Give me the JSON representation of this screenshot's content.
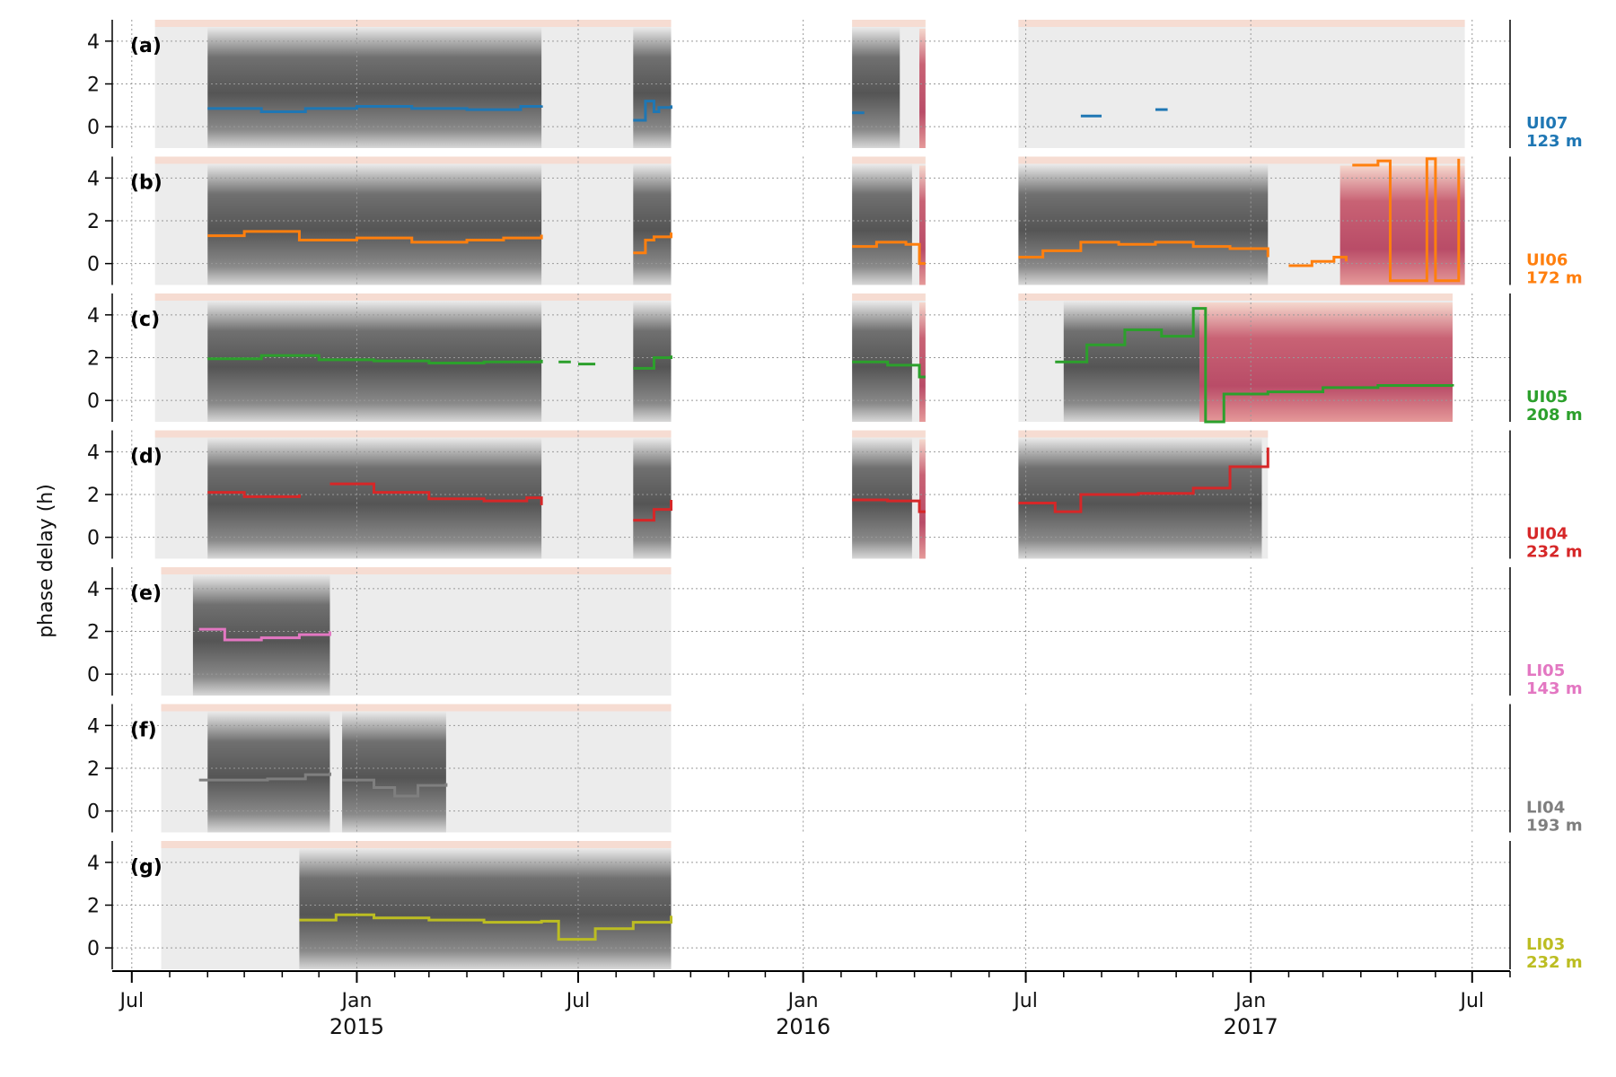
{
  "chart_data": {
    "type": "heatmap",
    "ylabel": "phase delay (h)",
    "y_ticks": [
      4,
      2,
      0
    ],
    "ylim": [
      -1,
      5
    ],
    "x_tick_labels": [
      {
        "date": "2014-07-01",
        "label": "Jul",
        "year": ""
      },
      {
        "date": "2015-01-01",
        "label": "Jan",
        "year": "2015"
      },
      {
        "date": "2015-07-01",
        "label": "Jul",
        "year": ""
      },
      {
        "date": "2016-01-01",
        "label": "Jan",
        "year": "2016"
      },
      {
        "date": "2016-07-01",
        "label": "Jul",
        "year": ""
      },
      {
        "date": "2017-01-01",
        "label": "Jan",
        "year": "2017"
      },
      {
        "date": "2017-07-01",
        "label": "Jul",
        "year": ""
      }
    ],
    "xlim": [
      "2014-06-15",
      "2017-08-01"
    ],
    "grid": true,
    "panels": [
      {
        "letter": "(a)",
        "station": "UI07",
        "depth": "123 m",
        "color": "#1f77b4",
        "heat_segments": [
          [
            "2014-07-20",
            "2015-09-15"
          ],
          [
            "2016-02-10",
            "2016-04-10"
          ],
          [
            "2016-06-25",
            "2017-06-25"
          ]
        ],
        "dark_segments": [
          [
            "2014-09-01",
            "2015-06-01"
          ],
          [
            "2015-08-15",
            "2015-09-15"
          ],
          [
            "2016-02-10",
            "2016-03-20"
          ]
        ],
        "red_segments": [
          [
            "2016-04-05",
            "2016-04-10"
          ]
        ],
        "series": [
          {
            "x": [
              "2014-09-01",
              "2014-10-15",
              "2014-11-20",
              "2015-01-01",
              "2015-02-15",
              "2015-04-01",
              "2015-05-15",
              "2015-06-01"
            ],
            "y": [
              0.85,
              0.7,
              0.85,
              0.95,
              0.85,
              0.8,
              0.95,
              1.0
            ]
          },
          {
            "x": [
              "2015-08-15",
              "2015-08-25",
              "2015-09-01",
              "2015-09-05",
              "2015-09-15"
            ],
            "y": [
              0.3,
              1.2,
              0.7,
              0.9,
              1.0
            ]
          },
          {
            "x": [
              "2016-02-10",
              "2016-02-20"
            ],
            "y": [
              0.65,
              0.65
            ]
          },
          {
            "x": [
              "2016-08-15",
              "2016-09-01"
            ],
            "y": [
              0.5,
              0.5
            ]
          },
          {
            "x": [
              "2016-10-15",
              "2016-10-25"
            ],
            "y": [
              0.8,
              0.8
            ]
          }
        ]
      },
      {
        "letter": "(b)",
        "station": "UI06",
        "depth": "172 m",
        "color": "#ff7f0e",
        "heat_segments": [
          [
            "2014-07-20",
            "2015-09-15"
          ],
          [
            "2016-02-10",
            "2016-04-10"
          ],
          [
            "2016-06-25",
            "2017-06-25"
          ]
        ],
        "dark_segments": [
          [
            "2014-09-01",
            "2015-06-01"
          ],
          [
            "2015-08-15",
            "2015-09-15"
          ],
          [
            "2016-02-10",
            "2016-03-30"
          ],
          [
            "2016-06-25",
            "2017-01-15"
          ]
        ],
        "red_segments": [
          [
            "2016-04-05",
            "2016-04-10"
          ],
          [
            "2017-03-15",
            "2017-06-25"
          ]
        ],
        "series": [
          {
            "x": [
              "2014-09-01",
              "2014-10-01",
              "2014-11-15",
              "2015-01-01",
              "2015-02-15",
              "2015-04-01",
              "2015-05-01",
              "2015-06-01"
            ],
            "y": [
              1.3,
              1.5,
              1.1,
              1.2,
              1.0,
              1.1,
              1.2,
              1.35
            ]
          },
          {
            "x": [
              "2015-08-15",
              "2015-08-25",
              "2015-09-01",
              "2015-09-15"
            ],
            "y": [
              0.5,
              1.1,
              1.25,
              1.45
            ]
          },
          {
            "x": [
              "2016-02-10",
              "2016-03-01",
              "2016-03-25",
              "2016-04-05",
              "2016-04-10"
            ],
            "y": [
              0.8,
              1.0,
              0.9,
              0.0,
              0.0
            ]
          },
          {
            "x": [
              "2016-06-25",
              "2016-07-15",
              "2016-08-15",
              "2016-09-15",
              "2016-10-15",
              "2016-11-15",
              "2016-12-15",
              "2017-01-15"
            ],
            "y": [
              0.3,
              0.6,
              1.0,
              0.9,
              1.0,
              0.8,
              0.7,
              0.3
            ]
          },
          {
            "x": [
              "2017-02-01",
              "2017-02-20",
              "2017-03-10",
              "2017-03-20"
            ],
            "y": [
              -0.1,
              0.1,
              0.3,
              0.1
            ]
          },
          {
            "x": [
              "2017-03-25",
              "2017-04-15",
              "2017-04-25",
              "2017-05-25",
              "2017-06-01",
              "2017-06-20"
            ],
            "y": [
              4.6,
              4.8,
              -0.8,
              4.9,
              -0.8,
              4.9
            ]
          }
        ]
      },
      {
        "letter": "(c)",
        "station": "UI05",
        "depth": "208 m",
        "color": "#2ca02c",
        "heat_segments": [
          [
            "2014-07-20",
            "2015-09-15"
          ],
          [
            "2016-02-10",
            "2016-04-10"
          ],
          [
            "2016-06-25",
            "2017-06-15"
          ]
        ],
        "dark_segments": [
          [
            "2014-09-01",
            "2015-06-01"
          ],
          [
            "2015-08-15",
            "2015-09-15"
          ],
          [
            "2016-02-10",
            "2016-03-30"
          ],
          [
            "2016-08-01",
            "2016-11-20"
          ]
        ],
        "red_segments": [
          [
            "2016-04-05",
            "2016-04-10"
          ],
          [
            "2016-11-20",
            "2017-06-15"
          ]
        ],
        "series": [
          {
            "x": [
              "2014-09-01",
              "2014-10-15",
              "2014-12-01",
              "2015-01-15",
              "2015-03-01",
              "2015-04-15",
              "2015-06-01"
            ],
            "y": [
              1.95,
              2.1,
              1.9,
              1.85,
              1.75,
              1.8,
              1.9
            ]
          },
          {
            "x": [
              "2015-06-15",
              "2015-06-25"
            ],
            "y": [
              1.8,
              1.8
            ]
          },
          {
            "x": [
              "2015-07-01",
              "2015-07-15"
            ],
            "y": [
              1.7,
              1.7
            ]
          },
          {
            "x": [
              "2015-08-15",
              "2015-09-01",
              "2015-09-15"
            ],
            "y": [
              1.5,
              2.0,
              2.1
            ]
          },
          {
            "x": [
              "2016-02-10",
              "2016-03-10",
              "2016-04-05",
              "2016-04-10"
            ],
            "y": [
              1.8,
              1.65,
              1.1,
              1.1
            ]
          },
          {
            "x": [
              "2016-07-25",
              "2016-08-20",
              "2016-09-20",
              "2016-10-20",
              "2016-11-15",
              "2016-11-25",
              "2016-12-10",
              "2017-01-15",
              "2017-03-01",
              "2017-04-15",
              "2017-06-15"
            ],
            "y": [
              1.8,
              2.6,
              3.3,
              3.0,
              4.3,
              -1.0,
              0.3,
              0.4,
              0.6,
              0.7,
              0.65
            ]
          }
        ]
      },
      {
        "letter": "(d)",
        "station": "UI04",
        "depth": "232 m",
        "color": "#d62728",
        "heat_segments": [
          [
            "2014-07-20",
            "2015-09-15"
          ],
          [
            "2016-02-10",
            "2016-04-10"
          ],
          [
            "2016-06-25",
            "2017-01-15"
          ]
        ],
        "dark_segments": [
          [
            "2014-09-01",
            "2015-06-01"
          ],
          [
            "2015-08-15",
            "2015-09-15"
          ],
          [
            "2016-02-10",
            "2016-03-30"
          ],
          [
            "2016-06-25",
            "2017-01-10"
          ]
        ],
        "red_segments": [
          [
            "2016-04-05",
            "2016-04-10"
          ]
        ],
        "series": [
          {
            "x": [
              "2014-09-01",
              "2014-10-01",
              "2014-11-15"
            ],
            "y": [
              2.1,
              1.9,
              2.0
            ]
          },
          {
            "x": [
              "2014-12-10",
              "2015-01-15",
              "2015-03-01",
              "2015-04-15",
              "2015-05-20",
              "2015-06-01"
            ],
            "y": [
              2.5,
              2.1,
              1.8,
              1.7,
              1.85,
              1.5
            ]
          },
          {
            "x": [
              "2015-08-15",
              "2015-09-01",
              "2015-09-15"
            ],
            "y": [
              0.8,
              1.3,
              1.75
            ]
          },
          {
            "x": [
              "2016-02-10",
              "2016-03-10",
              "2016-04-05",
              "2016-04-10"
            ],
            "y": [
              1.75,
              1.7,
              1.2,
              1.2
            ]
          },
          {
            "x": [
              "2016-06-25",
              "2016-07-25",
              "2016-08-15",
              "2016-10-01",
              "2016-11-15",
              "2016-12-15",
              "2017-01-15"
            ],
            "y": [
              1.6,
              1.2,
              2.0,
              2.05,
              2.3,
              3.3,
              4.2
            ]
          }
        ]
      },
      {
        "letter": "(e)",
        "station": "LI05",
        "depth": "143 m",
        "color": "#e377c2",
        "heat_segments": [
          [
            "2014-07-25",
            "2015-09-15"
          ]
        ],
        "dark_segments": [
          [
            "2014-08-20",
            "2014-12-10"
          ]
        ],
        "red_segments": [],
        "series": [
          {
            "x": [
              "2014-08-25",
              "2014-09-15",
              "2014-10-15",
              "2014-11-15",
              "2014-12-10"
            ],
            "y": [
              2.1,
              1.6,
              1.7,
              1.85,
              2.0
            ]
          }
        ]
      },
      {
        "letter": "(f)",
        "station": "LI04",
        "depth": "193 m",
        "color": "#7f7f7f",
        "heat_segments": [
          [
            "2014-07-25",
            "2015-09-15"
          ]
        ],
        "dark_segments": [
          [
            "2014-09-01",
            "2014-12-10"
          ],
          [
            "2014-12-20",
            "2015-03-15"
          ]
        ],
        "red_segments": [],
        "series": [
          {
            "x": [
              "2014-08-25",
              "2014-10-20",
              "2014-11-20",
              "2014-12-10"
            ],
            "y": [
              1.45,
              1.5,
              1.7,
              1.8
            ]
          },
          {
            "x": [
              "2014-12-20",
              "2015-01-15",
              "2015-02-01",
              "2015-02-20",
              "2015-03-15"
            ],
            "y": [
              1.45,
              1.1,
              0.7,
              1.2,
              1.3
            ]
          }
        ]
      },
      {
        "letter": "(g)",
        "station": "LI03",
        "depth": "232 m",
        "color": "#bcbd22",
        "heat_segments": [
          [
            "2014-07-25",
            "2015-09-15"
          ]
        ],
        "dark_segments": [
          [
            "2014-11-15",
            "2015-09-15"
          ]
        ],
        "red_segments": [],
        "series": [
          {
            "x": [
              "2014-11-15",
              "2014-12-15",
              "2015-01-15",
              "2015-03-01",
              "2015-04-15",
              "2015-06-01",
              "2015-06-15",
              "2015-07-15",
              "2015-08-15",
              "2015-09-15"
            ],
            "y": [
              1.3,
              1.55,
              1.4,
              1.3,
              1.2,
              1.25,
              0.4,
              0.9,
              1.2,
              1.5
            ]
          }
        ]
      }
    ]
  }
}
